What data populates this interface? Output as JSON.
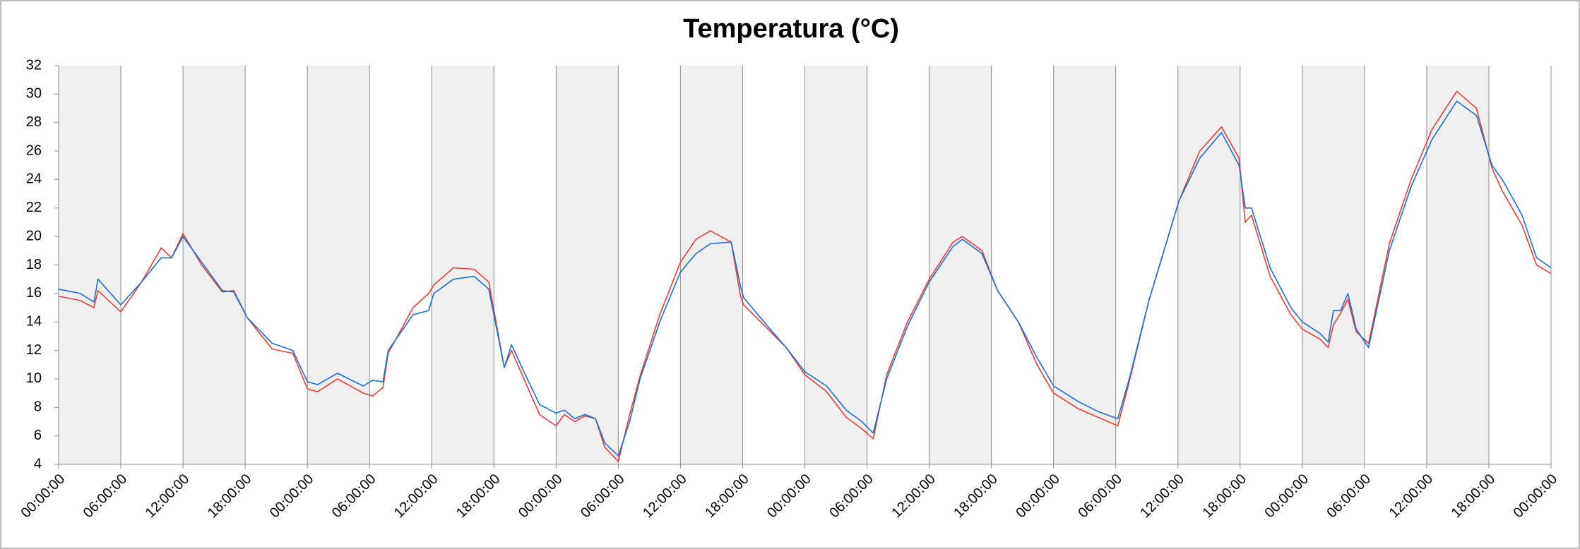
{
  "chart_data": {
    "type": "line",
    "title": "Temperatura (°C)",
    "x": [
      0,
      2.1,
      3.4,
      3.8,
      6,
      8,
      9.9,
      10.9,
      12,
      13.8,
      15.8,
      16.9,
      18.2,
      20.6,
      22.6,
      24,
      25,
      26.9,
      29.4,
      30.3,
      31.3,
      31.8,
      34.2,
      35.7,
      36.2,
      38.1,
      40.1,
      41.5,
      43,
      43.7,
      44.9,
      46.4,
      48,
      48.8,
      49.8,
      50.8,
      51.8,
      52.7,
      54,
      55.1,
      56.1,
      58,
      60,
      61.5,
      62.9,
      64.9,
      65.8,
      66.1,
      68.3,
      70.2,
      72,
      74.1,
      76,
      77.5,
      78.6,
      79.9,
      81.9,
      84,
      86.3,
      87.2,
      89.1,
      90.6,
      92.6,
      94.4,
      96,
      98.4,
      100.3,
      102.2,
      103.3,
      105.2,
      108.1,
      110.1,
      112.2,
      113.9,
      114.5,
      115.1,
      116.9,
      118.9,
      120,
      121.7,
      122.5,
      123,
      123.7,
      124.4,
      125.2,
      126.4,
      128.4,
      130.5,
      132.5,
      134.9,
      136.8,
      138.3,
      139.3,
      141.2,
      142.6,
      144
    ],
    "series": [
      {
        "color": "#e0403a",
        "values": [
          15.8,
          15.5,
          15.0,
          16.2,
          14.7,
          16.8,
          19.2,
          18.5,
          20.2,
          18,
          16.1,
          16.2,
          14.3,
          12.1,
          11.8,
          9.3,
          9.1,
          10.0,
          9.0,
          8.8,
          9.4,
          11.8,
          15.0,
          16.0,
          16.6,
          17.8,
          17.7,
          16.8,
          10.8,
          12.0,
          10.0,
          7.5,
          6.7,
          7.5,
          7.0,
          7.4,
          7.2,
          5.2,
          4.2,
          7.5,
          10.2,
          14.5,
          18.2,
          19.8,
          20.4,
          19.6,
          15.8,
          15.2,
          13.6,
          12.2,
          10.3,
          9.1,
          7.3,
          6.5,
          5.8,
          10.3,
          14,
          17,
          19.6,
          20.0,
          19,
          16.2,
          14,
          11.0,
          9.0,
          7.9,
          7.3,
          6.7,
          9.8,
          15.5,
          22.5,
          26.0,
          27.7,
          25.5,
          21.0,
          21.5,
          17.2,
          14.5,
          13.5,
          12.8,
          12.2,
          13.8,
          14.6,
          15.6,
          13.3,
          12.5,
          19.5,
          24,
          27.5,
          30.2,
          29,
          24.8,
          23.2,
          20.8,
          18,
          17.4
        ]
      },
      {
        "color": "#1f6fc8",
        "values": [
          16.3,
          16.0,
          15.4,
          17.0,
          15.2,
          16.8,
          18.5,
          18.5,
          20.0,
          18.2,
          16.2,
          16.1,
          14.3,
          12.5,
          12.0,
          9.8,
          9.6,
          10.4,
          9.5,
          9.9,
          9.8,
          12.0,
          14.5,
          14.8,
          16.0,
          17.0,
          17.2,
          16.3,
          10.8,
          12.4,
          10.5,
          8.2,
          7.6,
          7.8,
          7.2,
          7.5,
          7.2,
          5.5,
          4.6,
          7.0,
          10,
          14,
          17.5,
          18.8,
          19.5,
          19.6,
          16.5,
          15.7,
          13.8,
          12.2,
          10.5,
          9.5,
          7.8,
          7.0,
          6.2,
          10,
          13.7,
          16.8,
          19.3,
          19.8,
          18.8,
          16.2,
          14.0,
          11.5,
          9.5,
          8.4,
          7.7,
          7.2,
          10,
          15.5,
          22.5,
          25.5,
          27.3,
          25.0,
          22.0,
          22.0,
          17.8,
          15.0,
          14.0,
          13.2,
          12.6,
          14.8,
          14.8,
          16.0,
          13.5,
          12.2,
          19,
          23.5,
          26.8,
          29.5,
          28.5,
          25,
          24.0,
          21.5,
          18.5,
          17.8
        ]
      }
    ],
    "xlim": [
      0,
      144
    ],
    "xticks": [
      {
        "value": 0,
        "label": "00:00:00"
      },
      {
        "value": 6,
        "label": "06:00:00"
      },
      {
        "value": 12,
        "label": "12:00:00"
      },
      {
        "value": 18,
        "label": "18:00:00"
      },
      {
        "value": 24,
        "label": "00:00:00"
      },
      {
        "value": 30,
        "label": "06:00:00"
      },
      {
        "value": 36,
        "label": "12:00:00"
      },
      {
        "value": 42,
        "label": "18:00:00"
      },
      {
        "value": 48,
        "label": "00:00:00"
      },
      {
        "value": 54,
        "label": "06:00:00"
      },
      {
        "value": 60,
        "label": "12:00:00"
      },
      {
        "value": 66,
        "label": "18:00:00"
      },
      {
        "value": 72,
        "label": "00:00:00"
      },
      {
        "value": 78,
        "label": "06:00:00"
      },
      {
        "value": 84,
        "label": "12:00:00"
      },
      {
        "value": 90,
        "label": "18:00:00"
      },
      {
        "value": 96,
        "label": "00:00:00"
      },
      {
        "value": 102,
        "label": "06:00:00"
      },
      {
        "value": 108,
        "label": "12:00:00"
      },
      {
        "value": 114,
        "label": "18:00:00"
      },
      {
        "value": 120,
        "label": "00:00:00"
      },
      {
        "value": 126,
        "label": "06:00:00"
      },
      {
        "value": 132,
        "label": "12:00:00"
      },
      {
        "value": 138,
        "label": "18:00:00"
      },
      {
        "value": 144,
        "label": "00:00:00"
      }
    ],
    "ylim": [
      4,
      32
    ],
    "yticks": [
      4,
      6,
      8,
      10,
      12,
      14,
      16,
      18,
      20,
      22,
      24,
      26,
      28,
      30,
      32
    ],
    "grid": true
  }
}
